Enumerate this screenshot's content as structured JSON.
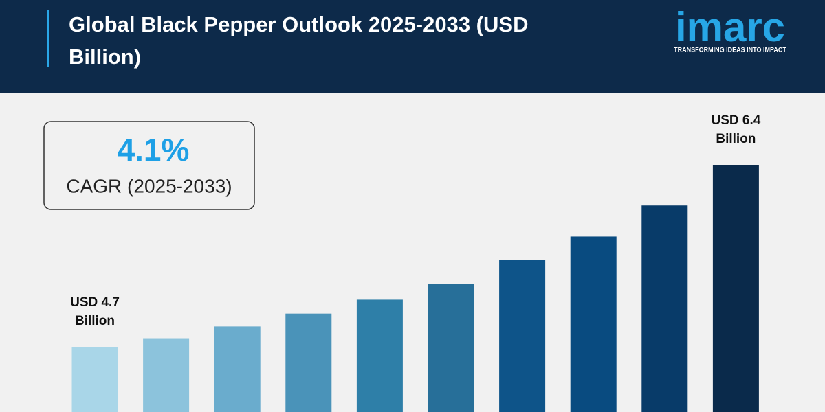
{
  "chart_data": {
    "type": "bar",
    "title": "Global Black Pepper Outlook 2025-2033 (USD Billion)",
    "cagr_value": "4.1%",
    "cagr_label": "CAGR (2025-2033)",
    "logo": "imarc",
    "tagline": "TRANSFORMING IDEAS INTO IMPACT",
    "categories": [
      null,
      null,
      null,
      null,
      null,
      null,
      null,
      null,
      null,
      null
    ],
    "values": [
      4.7,
      4.78,
      4.89,
      5.01,
      5.14,
      5.29,
      5.51,
      5.73,
      6.02,
      6.4
    ],
    "value_labels": [
      "USD 4.7 Billion",
      null,
      null,
      null,
      null,
      null,
      null,
      null,
      null,
      "USD 6.4 Billion"
    ],
    "colors": [
      "#a9d6e8",
      "#8cc3dc",
      "#6aaccd",
      "#4a93b9",
      "#2e7fa8",
      "#276f99",
      "#0e5489",
      "#094b80",
      "#083b69",
      "#0a2a4b"
    ]
  }
}
